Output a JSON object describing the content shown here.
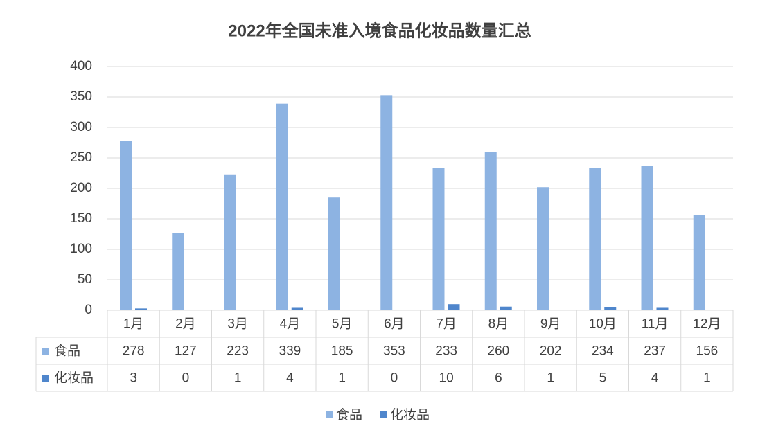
{
  "chart_data": {
    "type": "bar",
    "title": "2022年全国未准入境食品化妆品数量汇总",
    "categories": [
      "1月",
      "2月",
      "3月",
      "4月",
      "5月",
      "6月",
      "7月",
      "8月",
      "9月",
      "10月",
      "11月",
      "12月"
    ],
    "series": [
      {
        "name": "食品",
        "color": "#8db3e2",
        "values": [
          278,
          127,
          223,
          339,
          185,
          353,
          233,
          260,
          202,
          234,
          237,
          156
        ]
      },
      {
        "name": "化妆品",
        "color": "#4f86cc",
        "values": [
          3,
          0,
          1,
          4,
          1,
          0,
          10,
          6,
          1,
          5,
          4,
          1
        ]
      }
    ],
    "ylim": [
      0,
      400
    ],
    "yticks": [
      0,
      50,
      100,
      150,
      200,
      250,
      300,
      350,
      400
    ],
    "grid": true,
    "data_table": true,
    "legend": "bottom"
  }
}
